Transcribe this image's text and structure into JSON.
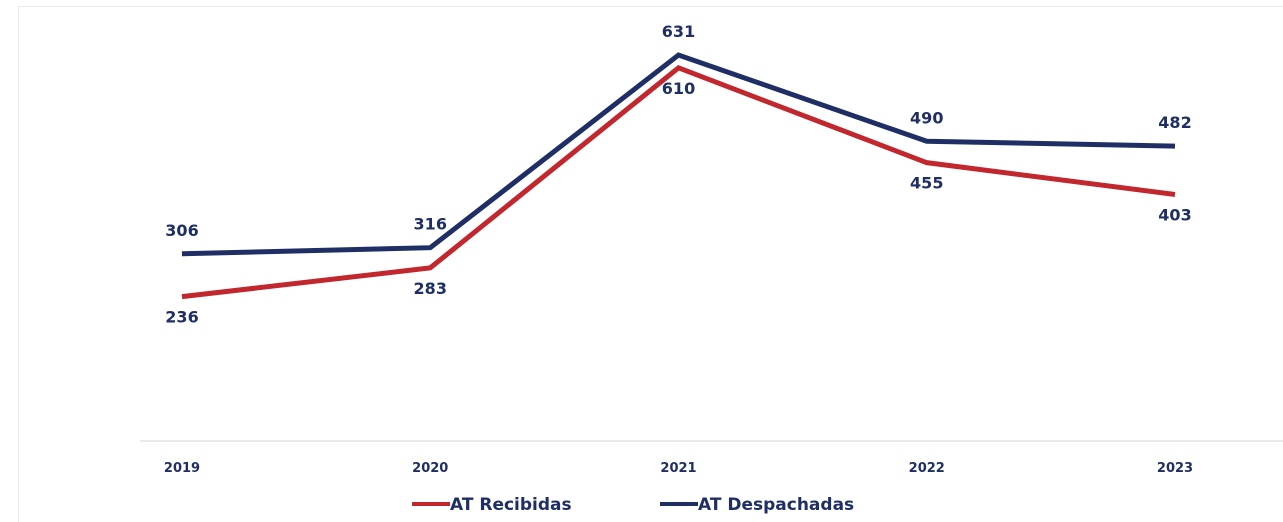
{
  "chart_data": {
    "type": "line",
    "categories": [
      "2019",
      "2020",
      "2021",
      "2022",
      "2023"
    ],
    "series": [
      {
        "name": "AT Recibidas",
        "color": "#c1272d",
        "values": [
          236,
          283,
          610,
          455,
          403
        ]
      },
      {
        "name": "AT Despachadas",
        "color": "#1f2f66",
        "values": [
          306,
          316,
          631,
          490,
          482
        ]
      }
    ],
    "ylim": [
      0,
      700
    ],
    "grid": false,
    "legend_position": "bottom"
  }
}
